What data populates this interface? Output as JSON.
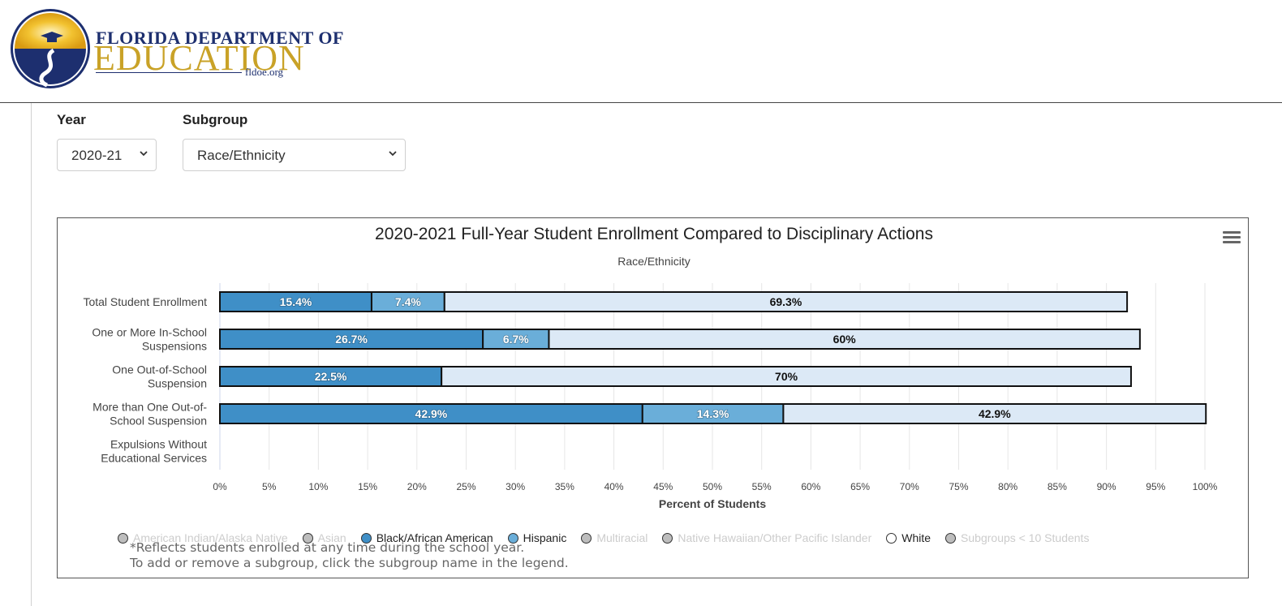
{
  "header": {
    "logo_line1": "FLORIDA DEPARTMENT OF",
    "logo_line2": "EDUCATION",
    "logo_line3": "fldoe.org"
  },
  "filters": {
    "year_label": "Year",
    "year_value": "2020-21",
    "subgroup_label": "Subgroup",
    "subgroup_value": "Race/Ethnicity"
  },
  "chart_data": {
    "type": "bar",
    "orientation": "horizontal",
    "stacked": true,
    "title": "2020-2021 Full-Year Student Enrollment Compared to Disciplinary Actions",
    "subtitle": "Race/Ethnicity",
    "xlabel": "Percent of Students",
    "xlim": [
      0,
      100
    ],
    "xticks": [
      "0%",
      "5%",
      "10%",
      "15%",
      "20%",
      "25%",
      "30%",
      "35%",
      "40%",
      "45%",
      "50%",
      "55%",
      "60%",
      "65%",
      "70%",
      "75%",
      "80%",
      "85%",
      "90%",
      "95%",
      "100%"
    ],
    "categories": [
      [
        "Total Student Enrollment"
      ],
      [
        "One or More In-School",
        "Suspensions"
      ],
      [
        "One Out-of-School",
        "Suspension"
      ],
      [
        "More than One Out-of-",
        "School Suspension"
      ],
      [
        "Expulsions Without",
        "Educational Services"
      ]
    ],
    "series": [
      {
        "name": "Black/African American",
        "color": "#3f8fc7",
        "label_color": "#ffffff",
        "values": [
          15.4,
          26.7,
          22.5,
          42.9,
          null
        ],
        "labels": [
          "15.4%",
          "26.7%",
          "22.5%",
          "42.9%",
          ""
        ]
      },
      {
        "name": "Hispanic",
        "color": "#6aaed9",
        "label_color": "#ffffff",
        "values": [
          7.4,
          6.7,
          null,
          14.3,
          null
        ],
        "labels": [
          "7.4%",
          "6.7%",
          "",
          "14.3%",
          ""
        ]
      },
      {
        "name": "White",
        "color": "#dce9f6",
        "label_color": "#111111",
        "values": [
          69.3,
          60,
          70,
          42.9,
          null
        ],
        "labels": [
          "69.3%",
          "60%",
          "70%",
          "42.9%",
          ""
        ]
      }
    ],
    "legend": [
      {
        "name": "American Indian/Alaska Native",
        "color": "#bdbdbd",
        "visible": false
      },
      {
        "name": "Asian",
        "color": "#bdbdbd",
        "visible": false
      },
      {
        "name": "Black/African American",
        "color": "#3f8fc7",
        "visible": true
      },
      {
        "name": "Hispanic",
        "color": "#6aaed9",
        "visible": true
      },
      {
        "name": "Multiracial",
        "color": "#bdbdbd",
        "visible": false
      },
      {
        "name": "Native Hawaiian/Other Pacific Islander",
        "color": "#bdbdbd",
        "visible": false
      },
      {
        "name": "White",
        "color": "#ffffff",
        "visible": true
      },
      {
        "name": "Subgroups < 10 Students",
        "color": "#bdbdbd",
        "visible": false
      }
    ],
    "grid": true,
    "legend_position": "bottom"
  },
  "notes": {
    "line1": "*Reflects students enrolled at any time during the school year.",
    "line2": "To add or remove a subgroup, click the subgroup name in the legend."
  }
}
